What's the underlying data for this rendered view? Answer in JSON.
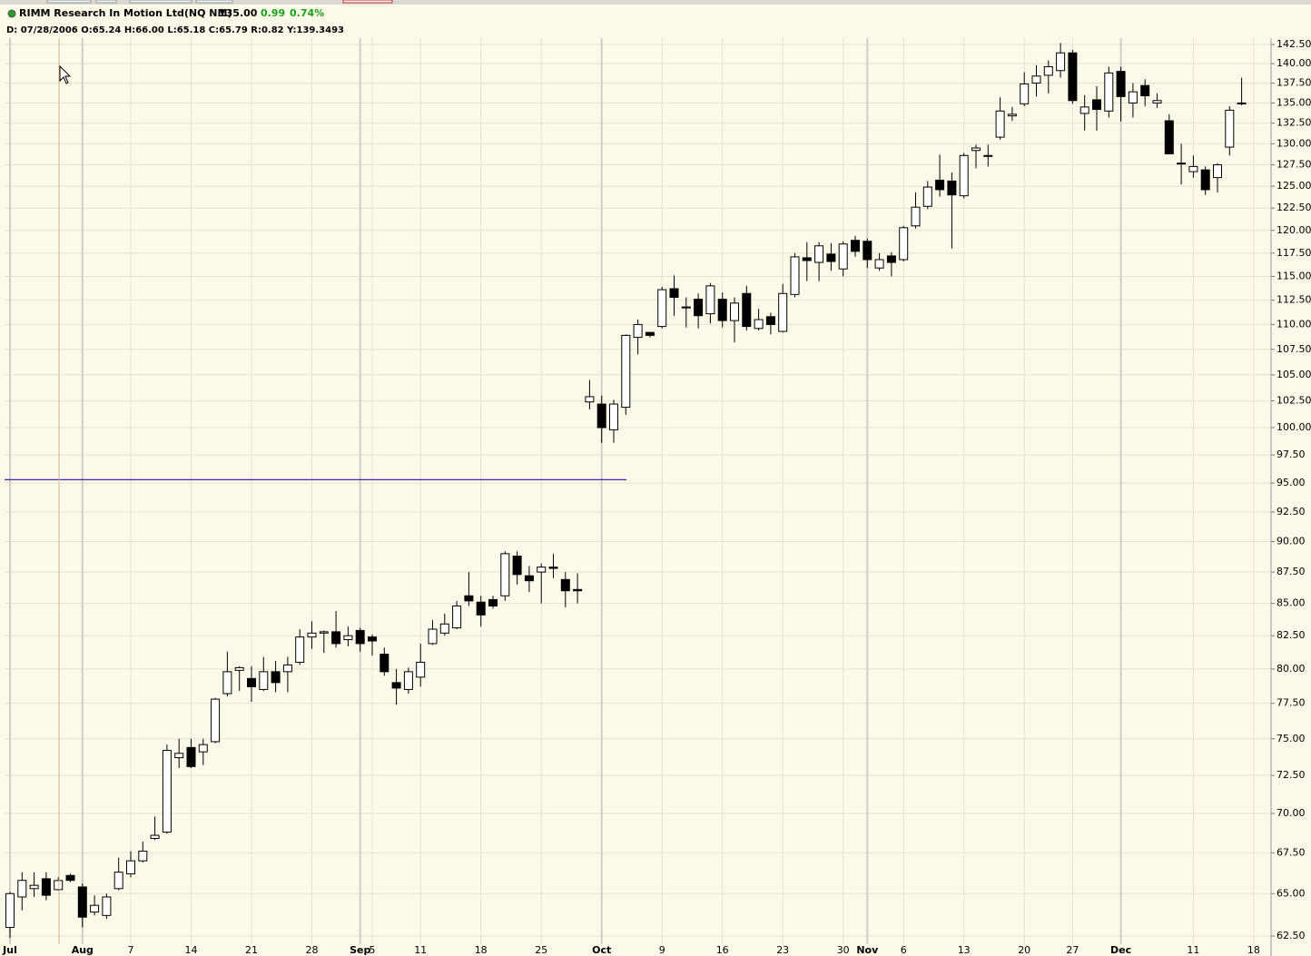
{
  "header": {
    "symbol": "RIMM Research In Motion Ltd(NQ NM)",
    "last": "135.00",
    "change": "0.99",
    "change_pct": "0.74%",
    "info": "D: 07/28/2006 O:65.24 H:66.00 L:65.18 C:65.79 R:0.82 Y:139.3493"
  },
  "chart_data": {
    "type": "candlestick",
    "log_scale": true,
    "grid": true,
    "categories": [
      "Jul",
      null,
      null,
      null,
      null,
      null,
      "Aug",
      null,
      null,
      null,
      "7",
      null,
      null,
      null,
      null,
      "14",
      null,
      null,
      null,
      null,
      "21",
      null,
      null,
      null,
      null,
      "28",
      null,
      null,
      null,
      "Sep",
      "5",
      null,
      null,
      null,
      "11",
      null,
      null,
      null,
      null,
      "18",
      null,
      null,
      null,
      null,
      "25",
      null,
      null,
      null,
      null,
      "Oct",
      null,
      null,
      null,
      null,
      "9",
      null,
      null,
      null,
      null,
      "16",
      null,
      null,
      null,
      null,
      "23",
      null,
      null,
      null,
      null,
      "30",
      null,
      "Nov",
      null,
      null,
      "6",
      null,
      null,
      null,
      null,
      "13",
      null,
      null,
      null,
      null,
      "20",
      null,
      null,
      null,
      "27",
      null,
      null,
      null,
      "Dec",
      null,
      null,
      null,
      null,
      null,
      "11",
      null,
      null,
      null,
      null,
      "18"
    ],
    "open": [
      63.0,
      64.8,
      65.3,
      65.9,
      65.24,
      66.1,
      65.4,
      63.9,
      63.7,
      65.3,
      66.2,
      67.0,
      68.4,
      68.8,
      73.7,
      74.4,
      74.1,
      74.8,
      78.2,
      79.9,
      79.3,
      78.5,
      79.8,
      79.8,
      80.5,
      82.4,
      82.7,
      82.8,
      82.2,
      82.9,
      82.4,
      81.1,
      79.0,
      78.5,
      79.4,
      81.9,
      82.7,
      83.1,
      85.6,
      85.1,
      85.3,
      85.6,
      88.8,
      87.2,
      87.5,
      87.9,
      86.9,
      86.1,
      102.4,
      102.2,
      99.8,
      101.9,
      108.7,
      109.2,
      109.8,
      113.7,
      111.8,
      112.6,
      111.1,
      112.6,
      110.4,
      113.2,
      109.6,
      110.8,
      109.3,
      113.1,
      117.0,
      116.5,
      117.4,
      115.8,
      118.9,
      118.8,
      115.9,
      117.2,
      116.8,
      120.5,
      122.7,
      125.7,
      125.6,
      123.9,
      129.2,
      128.6,
      130.8,
      133.4,
      134.9,
      137.5,
      138.5,
      139.1,
      141.4,
      133.7,
      135.4,
      134.0,
      139.0,
      135.0,
      137.2,
      135.0,
      132.8,
      127.7,
      126.7,
      126.9,
      126.0,
      129.6,
      134.9,
      null
    ],
    "high": [
      65.1,
      66.3,
      66.3,
      66.3,
      66.0,
      66.2,
      65.6,
      64.9,
      65.0,
      67.2,
      67.6,
      68.2,
      69.8,
      74.6,
      75.0,
      75.0,
      75.0,
      77.9,
      81.3,
      80.2,
      80.2,
      80.9,
      80.6,
      80.9,
      83.0,
      83.6,
      82.9,
      84.4,
      83.2,
      83.1,
      82.6,
      81.6,
      80.0,
      80.1,
      81.9,
      83.7,
      84.2,
      85.2,
      87.5,
      85.6,
      85.6,
      89.2,
      89.2,
      88.0,
      88.2,
      89.0,
      87.5,
      87.4,
      104.5,
      103.0,
      102.6,
      109.0,
      110.5,
      109.1,
      113.9,
      115.1,
      112.8,
      113.2,
      114.3,
      113.3,
      112.8,
      114.0,
      111.6,
      111.2,
      114.2,
      117.5,
      118.7,
      118.7,
      118.6,
      118.8,
      119.4,
      119.1,
      117.5,
      117.6,
      120.5,
      124.3,
      125.6,
      128.7,
      126.6,
      128.9,
      129.9,
      129.9,
      135.7,
      134.5,
      138.9,
      139.8,
      140.4,
      142.7,
      141.8,
      136.0,
      137.1,
      139.6,
      139.6,
      137.5,
      138.0,
      136.2,
      133.6,
      130.0,
      128.6,
      127.3,
      127.7,
      134.6,
      138.2,
      null
    ],
    "low": [
      62.4,
      64.0,
      64.8,
      64.6,
      65.18,
      65.7,
      63.0,
      63.7,
      63.5,
      65.2,
      66.0,
      66.9,
      68.3,
      68.7,
      73.0,
      73.0,
      73.2,
      74.7,
      78.0,
      78.4,
      77.6,
      78.4,
      78.3,
      78.3,
      80.3,
      81.5,
      81.2,
      81.6,
      81.7,
      81.3,
      81.0,
      79.5,
      77.4,
      78.2,
      78.7,
      81.8,
      82.5,
      83.0,
      84.8,
      83.2,
      84.6,
      85.2,
      86.5,
      85.9,
      85.0,
      87.0,
      84.7,
      85.0,
      101.7,
      98.6,
      98.6,
      101.2,
      107.0,
      108.7,
      109.6,
      110.9,
      109.7,
      109.6,
      110.1,
      109.7,
      108.2,
      109.4,
      109.4,
      109.0,
      109.2,
      112.8,
      114.5,
      114.5,
      115.6,
      115.0,
      117.1,
      115.9,
      115.6,
      115.0,
      116.6,
      120.2,
      122.4,
      123.8,
      118.0,
      123.6,
      127.1,
      127.3,
      130.5,
      132.8,
      134.6,
      135.8,
      136.2,
      138.2,
      134.9,
      131.6,
      131.6,
      133.2,
      132.7,
      133.2,
      134.6,
      134.4,
      128.8,
      125.2,
      126.0,
      124.0,
      124.3,
      128.6,
      134.7,
      null
    ],
    "close": [
      65.0,
      65.8,
      65.5,
      64.9,
      65.79,
      65.8,
      63.6,
      64.3,
      64.8,
      66.3,
      67.0,
      67.6,
      68.6,
      74.2,
      74.0,
      73.1,
      74.6,
      77.8,
      79.8,
      80.1,
      78.7,
      79.8,
      79.0,
      80.3,
      82.4,
      82.7,
      82.8,
      81.9,
      82.5,
      81.9,
      82.1,
      79.8,
      78.6,
      79.8,
      80.5,
      83.0,
      83.4,
      84.8,
      85.2,
      84.1,
      84.8,
      89.0,
      87.3,
      86.8,
      87.9,
      87.8,
      86.0,
      86.0,
      102.9,
      100.0,
      102.2,
      108.9,
      110.0,
      108.9,
      113.6,
      112.8,
      111.7,
      110.9,
      114.0,
      110.4,
      112.2,
      109.8,
      110.5,
      110.0,
      113.2,
      117.1,
      116.7,
      118.3,
      116.6,
      118.5,
      117.7,
      116.8,
      116.8,
      116.5,
      120.3,
      122.6,
      124.9,
      124.6,
      124.0,
      128.6,
      129.5,
      128.5,
      134.0,
      133.6,
      137.4,
      138.4,
      139.6,
      141.4,
      135.3,
      134.5,
      134.2,
      138.8,
      135.8,
      136.4,
      135.9,
      135.3,
      128.8,
      127.6,
      127.3,
      124.6,
      127.5,
      134.1,
      135.0,
      null
    ],
    "up_color": "#ffffff",
    "down_color": "#000000",
    "trendline": {
      "value": 95.3,
      "color": "#4b1fb5"
    },
    "ylim": [
      62.03,
      143.34
    ],
    "yticks": [
      {
        "value": 62.5,
        "label": "62.50"
      },
      {
        "value": 65,
        "label": "65.00"
      },
      {
        "value": 67.5,
        "label": "67.50"
      },
      {
        "value": 70,
        "label": "70.00"
      },
      {
        "value": 72.5,
        "label": "72.50"
      },
      {
        "value": 75,
        "label": "75.00"
      },
      {
        "value": 77.5,
        "label": "77.50"
      },
      {
        "value": 80,
        "label": "80.00"
      },
      {
        "value": 82.5,
        "label": "82.50"
      },
      {
        "value": 85,
        "label": "85.00"
      },
      {
        "value": 87.5,
        "label": "87.50"
      },
      {
        "value": 90,
        "label": "90.00"
      },
      {
        "value": 92.5,
        "label": "92.50"
      },
      {
        "value": 95,
        "label": "95.00"
      },
      {
        "value": 97.5,
        "label": "97.50"
      },
      {
        "value": 100,
        "label": "100.00"
      },
      {
        "value": 102.5,
        "label": "102.50"
      },
      {
        "value": 105,
        "label": "105.00"
      },
      {
        "value": 107.5,
        "label": "107.50"
      },
      {
        "value": 110,
        "label": "110.00"
      },
      {
        "value": 112.5,
        "label": "112.50"
      },
      {
        "value": 115,
        "label": "115.00"
      },
      {
        "value": 117.5,
        "label": "117.50"
      },
      {
        "value": 120,
        "label": "120.00"
      },
      {
        "value": 122.5,
        "label": "122.50"
      },
      {
        "value": 125,
        "label": "125.00"
      },
      {
        "value": 127.5,
        "label": "127.50"
      },
      {
        "value": 130,
        "label": "130.00"
      },
      {
        "value": 132.5,
        "label": "132.50"
      },
      {
        "value": 135,
        "label": "135.00"
      },
      {
        "value": 137.5,
        "label": "137.50"
      },
      {
        "value": 140,
        "label": "140.00"
      },
      {
        "value": 142.5,
        "label": "142.50"
      }
    ]
  }
}
